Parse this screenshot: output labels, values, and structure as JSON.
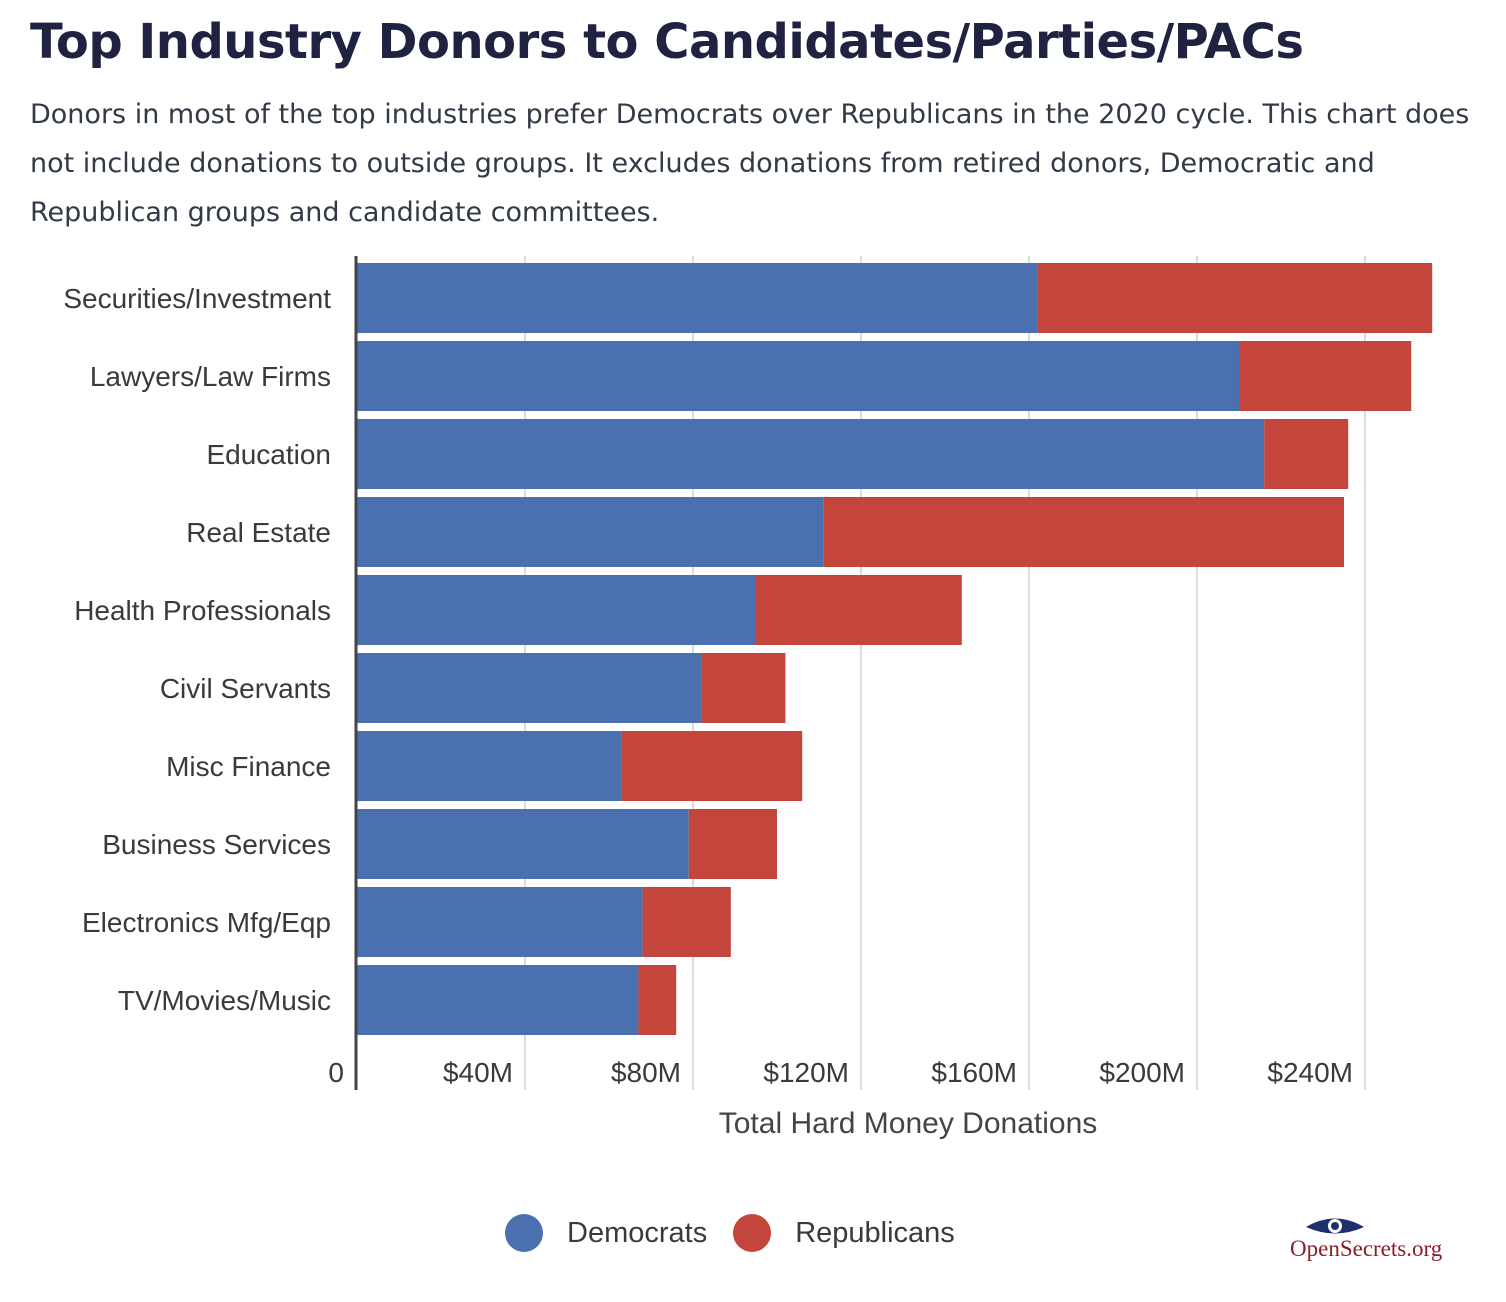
{
  "title": "Top Industry Donors to Candidates/Parties/PACs",
  "subtitle": "Donors in most of the top industries prefer Democrats over Republicans in the 2020 cycle. This chart does not include donations to outside groups. It excludes donations from retired donors, Democratic and Republican groups and candidate committees.",
  "chart_data": {
    "type": "bar",
    "orientation": "horizontal",
    "stacked": true,
    "categories": [
      "Securities/Investment",
      "Lawyers/Law Firms",
      "Education",
      "Real Estate",
      "Health Professionals",
      "Civil Servants",
      "Misc Finance",
      "Business Services",
      "Electronics Mfg/Eqp",
      "TV/Movies/Music"
    ],
    "series": [
      {
        "name": "Democrats",
        "color": "#4a70b0",
        "values": [
          162,
          210,
          216,
          111,
          95,
          82,
          63,
          79,
          68,
          67
        ]
      },
      {
        "name": "Republicans",
        "color": "#c4453b",
        "values": [
          94,
          41,
          20,
          124,
          49,
          20,
          43,
          21,
          21,
          9
        ]
      }
    ],
    "xlabel": "Total Hard Money Donations",
    "xlim": [
      0,
      260
    ],
    "xticks": [
      0,
      40,
      80,
      120,
      160,
      200,
      240
    ],
    "xtick_labels": [
      "0",
      "$40M",
      "$80M",
      "$120M",
      "$160M",
      "$200M",
      "$240M"
    ],
    "grid": true,
    "legend": "bottom-center"
  },
  "legend": {
    "democrats": "Democrats",
    "republicans": "Republicans",
    "dem_color": "#4a70b0",
    "rep_color": "#c4453b"
  },
  "logo": {
    "text": "OpenSecrets.org",
    "icon": "eye-icon"
  }
}
